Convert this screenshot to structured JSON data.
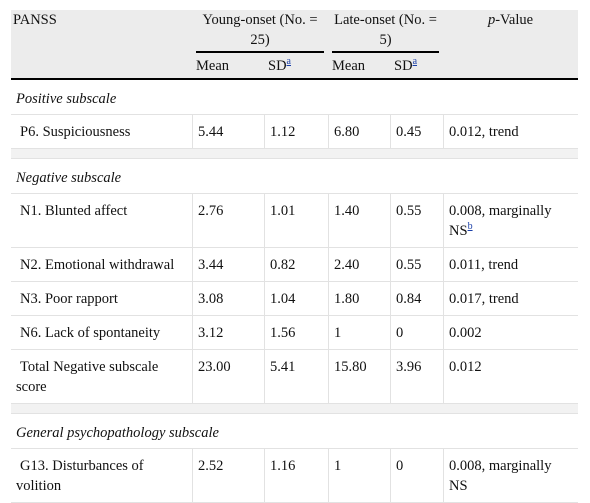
{
  "header": {
    "panss": "PANSS",
    "young_onset": "Young-onset (No. = 25)",
    "late_onset": "Late-onset (No. = 5)",
    "p_italic": "p",
    "p_rest": "-Value",
    "mean": "Mean",
    "sd": "SD",
    "sd_footnote": "a"
  },
  "sections": [
    {
      "title": "Positive subscale",
      "rows": [
        {
          "item": "P6. Suspiciousness",
          "y_mean": "5.44",
          "y_sd": "1.12",
          "l_mean": "6.80",
          "l_sd": "0.45",
          "p": "0.012, trend",
          "p_fn": ""
        }
      ]
    },
    {
      "title": "Negative subscale",
      "rows": [
        {
          "item": "N1. Blunted affect",
          "y_mean": "2.76",
          "y_sd": "1.01",
          "l_mean": "1.40",
          "l_sd": "0.55",
          "p": "0.008, marginally NS",
          "p_fn": "b"
        },
        {
          "item": "N2. Emotional withdrawal",
          "y_mean": "3.44",
          "y_sd": "0.82",
          "l_mean": "2.40",
          "l_sd": "0.55",
          "p": "0.011, trend",
          "p_fn": ""
        },
        {
          "item": "N3. Poor rapport",
          "y_mean": "3.08",
          "y_sd": "1.04",
          "l_mean": "1.80",
          "l_sd": "0.84",
          "p": "0.017, trend",
          "p_fn": ""
        },
        {
          "item": "N6. Lack of spontaneity",
          "y_mean": "3.12",
          "y_sd": "1.56",
          "l_mean": "1",
          "l_sd": "0",
          "p": "0.002",
          "p_fn": ""
        },
        {
          "item": "Total Negative subscale score",
          "y_mean": "23.00",
          "y_sd": "5.41",
          "l_mean": "15.80",
          "l_sd": "3.96",
          "p": "0.012",
          "p_fn": ""
        }
      ]
    },
    {
      "title": "General psychopathology subscale",
      "rows": [
        {
          "item": "G13. Disturbances of volition",
          "y_mean": "2.52",
          "y_sd": "1.16",
          "l_mean": "1",
          "l_sd": "0",
          "p": "0.008, marginally NS",
          "p_fn": ""
        }
      ]
    }
  ]
}
